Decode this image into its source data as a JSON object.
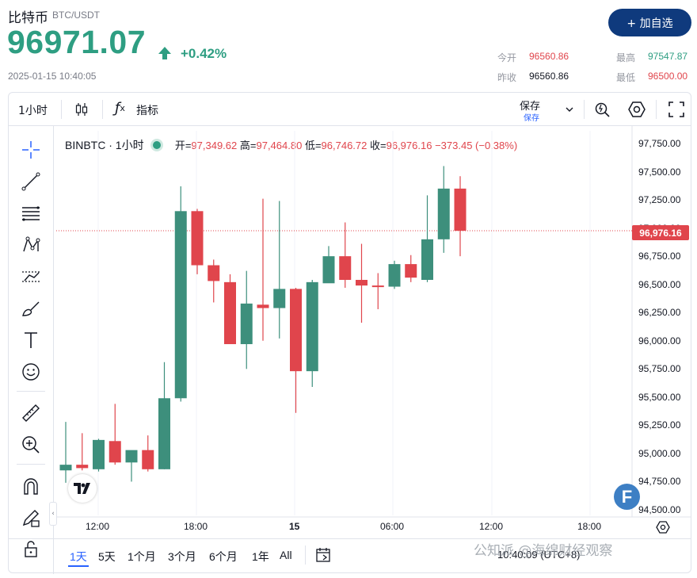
{
  "header": {
    "name": "比特币",
    "pair": "BTC/USDT",
    "price": "96971.07",
    "change_pct": "+0.42%",
    "timestamp": "2025-01-15 10:40:05",
    "add_button": "+ 加自选",
    "accent_green": "#2e9e82",
    "accent_red": "#e0454c",
    "brand_blue": "#0f3a7d"
  },
  "stats": {
    "open_label": "今开",
    "open_value": "96560.86",
    "prev_label": "昨收",
    "prev_value": "96560.86",
    "high_label": "最高",
    "high_value": "97547.87",
    "low_label": "最低",
    "low_value": "96500.00"
  },
  "toolbar": {
    "interval": "1小时",
    "indicators": "指标",
    "save_label": "保存",
    "save_sub": "保存"
  },
  "legend": {
    "symbol": "BINBTC · 1小时",
    "open_label": "开=",
    "open": "97,349.62",
    "high_label": "高=",
    "high": "97,464.80",
    "low_label": "低=",
    "low": "96,746.72",
    "close_label": "收=",
    "close": "96,976.16",
    "change": "−373.45 (−0.38%)"
  },
  "last_price_tag": "96,976.16",
  "price_axis": [
    "97,750.00",
    "97,500.00",
    "97,250.00",
    "97,000.00",
    "96,750.00",
    "96,500.00",
    "96,250.00",
    "96,000.00",
    "95,750.00",
    "95,500.00",
    "95,250.00",
    "95,000.00",
    "94,750.00",
    "94,500.00"
  ],
  "time_axis": [
    "12:00",
    "18:00",
    "15",
    "06:00",
    "12:00",
    "18:00"
  ],
  "ranges": [
    "1天",
    "5天",
    "1个月",
    "3个月",
    "6个月",
    "1年",
    "All"
  ],
  "timezone": "10:40:09 (UTC+8)",
  "watermark": "公知派 @海绵财经观察",
  "chart_data": {
    "type": "candlestick",
    "ylim": [
      94450,
      97850
    ],
    "candles": [
      {
        "o": 94850,
        "h": 95280,
        "l": 94740,
        "c": 94900
      },
      {
        "o": 94900,
        "h": 95180,
        "l": 94850,
        "c": 94870
      },
      {
        "o": 94860,
        "h": 95130,
        "l": 94840,
        "c": 95120
      },
      {
        "o": 95110,
        "h": 95440,
        "l": 94900,
        "c": 94920
      },
      {
        "o": 94920,
        "h": 95020,
        "l": 94750,
        "c": 95030
      },
      {
        "o": 95030,
        "h": 95160,
        "l": 94840,
        "c": 94860
      },
      {
        "o": 94860,
        "h": 95810,
        "l": 94860,
        "c": 95490
      },
      {
        "o": 95490,
        "h": 97370,
        "l": 95460,
        "c": 97150
      },
      {
        "o": 97150,
        "h": 97170,
        "l": 96590,
        "c": 96670
      },
      {
        "o": 96670,
        "h": 96720,
        "l": 96340,
        "c": 96530
      },
      {
        "o": 96520,
        "h": 96590,
        "l": 95980,
        "c": 95970
      },
      {
        "o": 95970,
        "h": 96620,
        "l": 95750,
        "c": 96330
      },
      {
        "o": 96320,
        "h": 97260,
        "l": 96000,
        "c": 96290
      },
      {
        "o": 96290,
        "h": 97240,
        "l": 96020,
        "c": 96460
      },
      {
        "o": 96460,
        "h": 96470,
        "l": 95360,
        "c": 95730
      },
      {
        "o": 95730,
        "h": 96540,
        "l": 95590,
        "c": 96520
      },
      {
        "o": 96510,
        "h": 96840,
        "l": 96530,
        "c": 96750
      },
      {
        "o": 96750,
        "h": 97050,
        "l": 96470,
        "c": 96540
      },
      {
        "o": 96540,
        "h": 96860,
        "l": 96160,
        "c": 96490
      },
      {
        "o": 96490,
        "h": 96600,
        "l": 96280,
        "c": 96480
      },
      {
        "o": 96480,
        "h": 96710,
        "l": 96460,
        "c": 96680
      },
      {
        "o": 96680,
        "h": 96760,
        "l": 96520,
        "c": 96560
      },
      {
        "o": 96540,
        "h": 97290,
        "l": 96520,
        "c": 96900
      },
      {
        "o": 96900,
        "h": 97550,
        "l": 96780,
        "c": 97350
      },
      {
        "o": 97350,
        "h": 97460,
        "l": 96750,
        "c": 96976
      }
    ]
  }
}
